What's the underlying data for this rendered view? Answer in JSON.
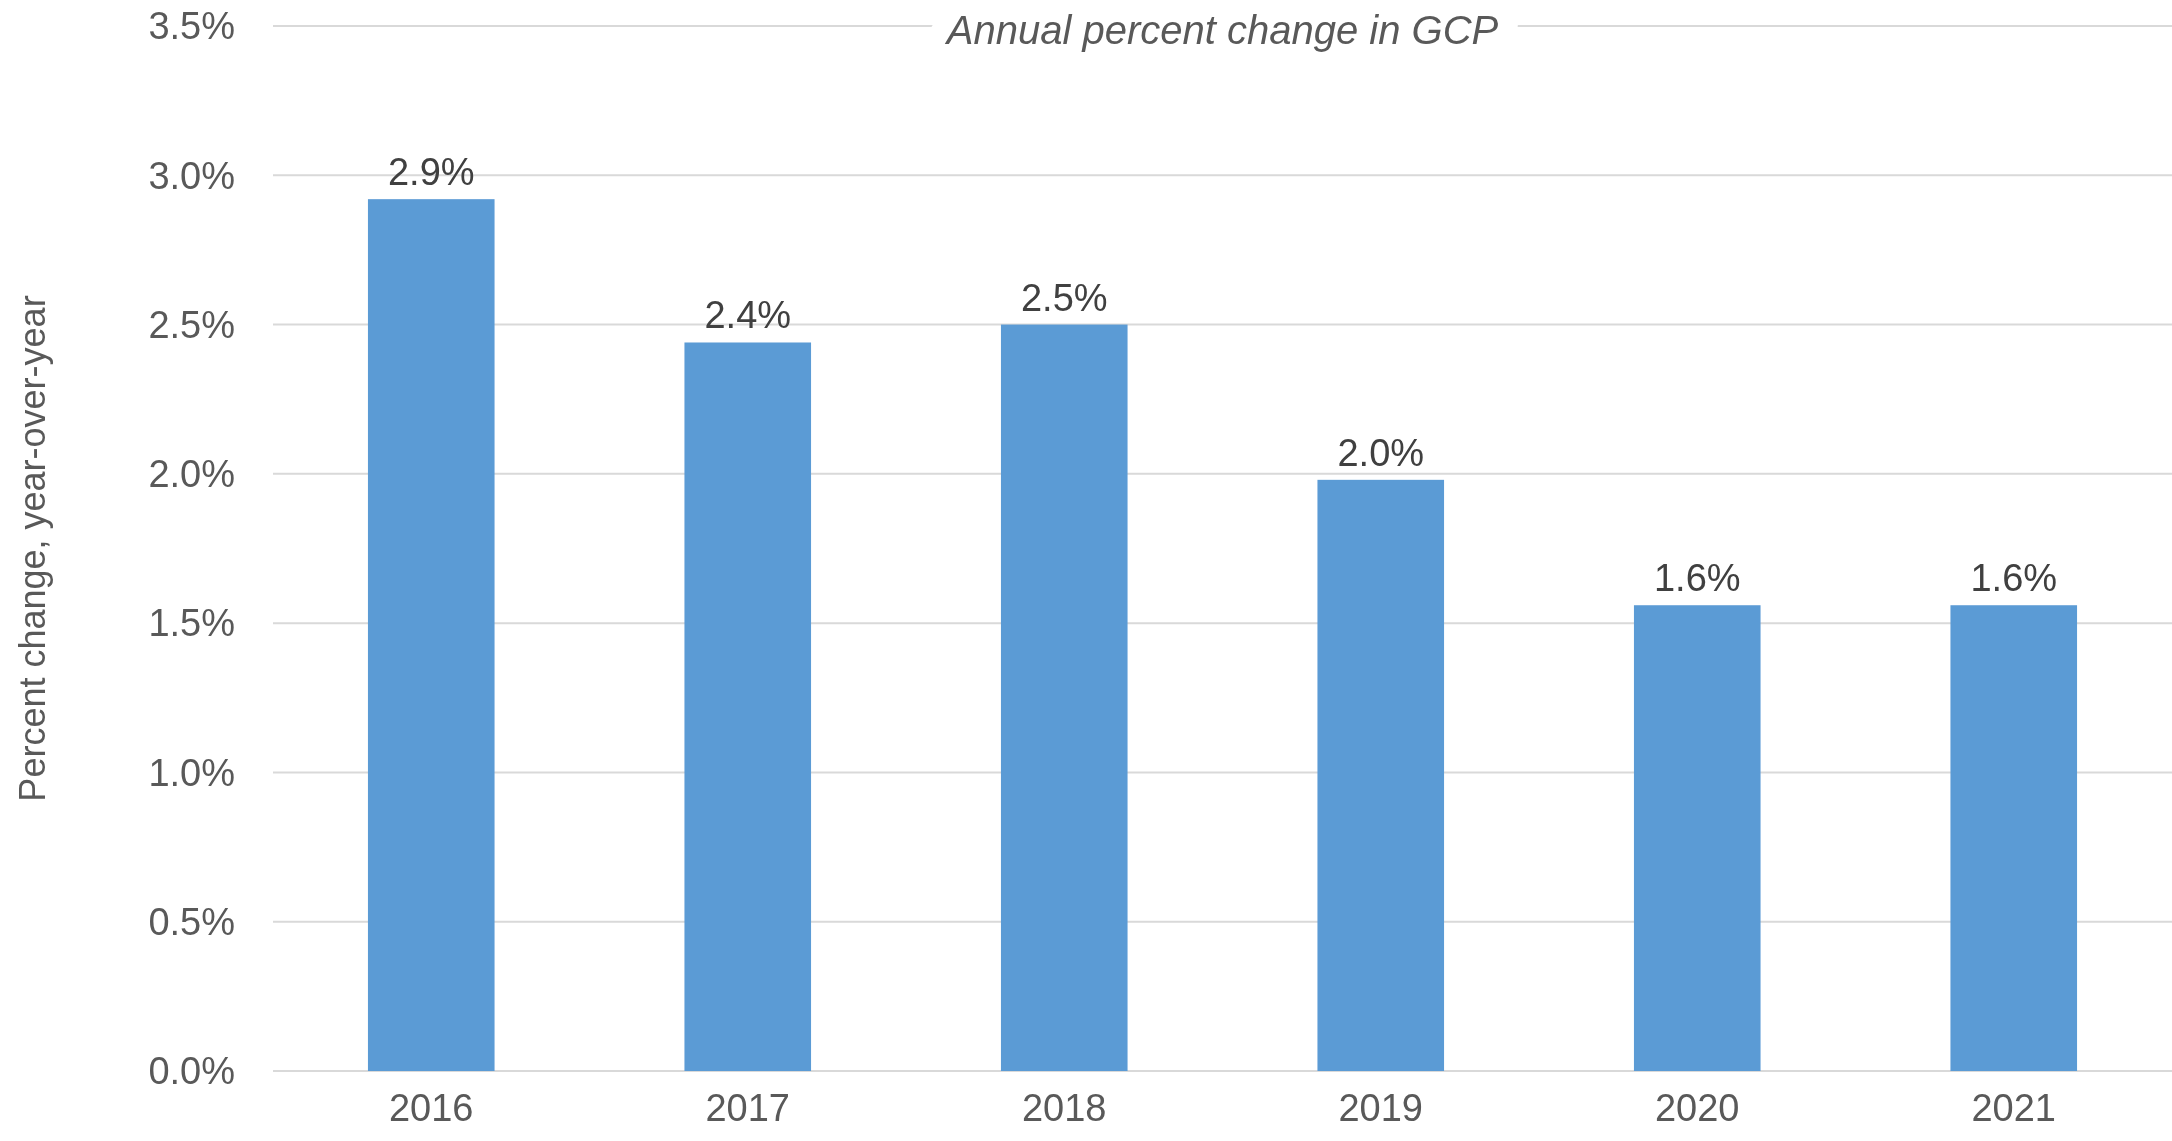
{
  "chart_data": {
    "type": "bar",
    "title": "Annual percent change in GCP",
    "ylabel": "Percent change, year-over-year",
    "categories": [
      "2016",
      "2017",
      "2018",
      "2019",
      "2020",
      "2021"
    ],
    "values": [
      2.92,
      2.44,
      2.5,
      1.98,
      1.56,
      1.56
    ],
    "value_labels": [
      "2.9%",
      "2.4%",
      "2.5%",
      "2.0%",
      "1.6%",
      "1.6%"
    ],
    "color": "#5b9bd5",
    "ylim": [
      0,
      3.5
    ],
    "yticks": [
      {
        "value": 0,
        "label": "0.0%"
      },
      {
        "value": 0.5,
        "label": "0.5%"
      },
      {
        "value": 1,
        "label": "1.0%"
      },
      {
        "value": 1.5,
        "label": "1.5%"
      },
      {
        "value": 2,
        "label": "2.0%"
      },
      {
        "value": 2.5,
        "label": "2.5%"
      },
      {
        "value": 3,
        "label": "3.0%"
      },
      {
        "value": 3.5,
        "label": "3.5%"
      }
    ],
    "grid": "y"
  }
}
